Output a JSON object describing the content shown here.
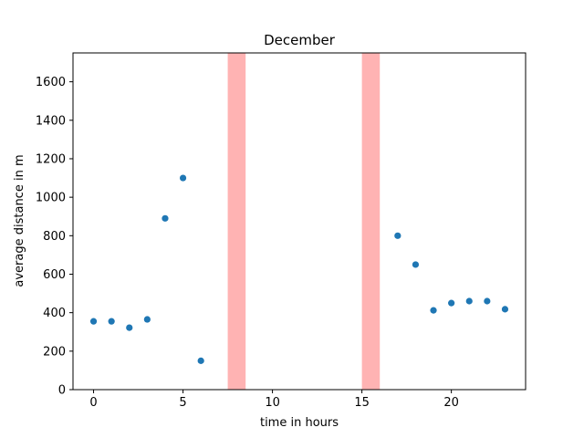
{
  "chart_data": {
    "type": "scatter",
    "title": "December",
    "xlabel": "time in hours",
    "ylabel": "average distance in m",
    "xlim": [
      -1.15,
      24.15
    ],
    "ylim": [
      0,
      1750
    ],
    "xticks": [
      0,
      5,
      10,
      15,
      20
    ],
    "yticks": [
      0,
      200,
      400,
      600,
      800,
      1000,
      1200,
      1400,
      1600
    ],
    "grid": false,
    "legend": "none",
    "series": [
      {
        "color": "#1f77b4",
        "x": [
          0,
          1,
          2,
          3,
          4,
          5,
          6,
          17,
          18,
          19,
          20,
          21,
          22,
          23
        ],
        "y": [
          355,
          355,
          322,
          365,
          890,
          1100,
          150,
          800,
          650,
          412,
          450,
          460,
          460,
          418
        ]
      }
    ],
    "shaded_spans": [
      {
        "x_start": 7.5,
        "x_end": 8.5,
        "color": "#ff9999"
      },
      {
        "x_start": 15.0,
        "x_end": 16.0,
        "color": "#ff9999"
      }
    ]
  }
}
